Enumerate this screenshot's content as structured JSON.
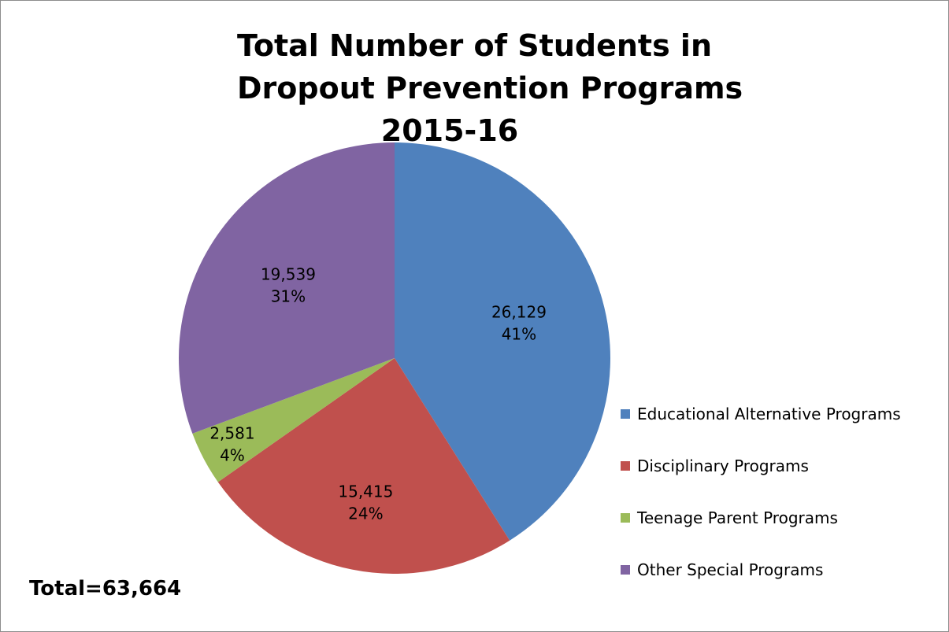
{
  "chart_data": {
    "type": "pie",
    "title_lines": [
      "Total Number of Students in",
      "Dropout Prevention Programs",
      "2015-16"
    ],
    "slices": [
      {
        "name": "Educational Alternative Programs",
        "value": 26129,
        "value_label": "26,129",
        "percent_label": "41%",
        "color": "#4F81BD"
      },
      {
        "name": "Disciplinary Programs",
        "value": 15415,
        "value_label": "15,415",
        "percent_label": "24%",
        "color": "#C0504D"
      },
      {
        "name": "Teenage Parent Programs",
        "value": 2581,
        "value_label": "2,581",
        "percent_label": "4%",
        "color": "#9BBB59"
      },
      {
        "name": "Other Special Programs",
        "value": 19539,
        "value_label": "19,539",
        "percent_label": "31%",
        "color": "#8064A2"
      }
    ],
    "legend_position": "right",
    "annotation": "Total=63,664"
  }
}
